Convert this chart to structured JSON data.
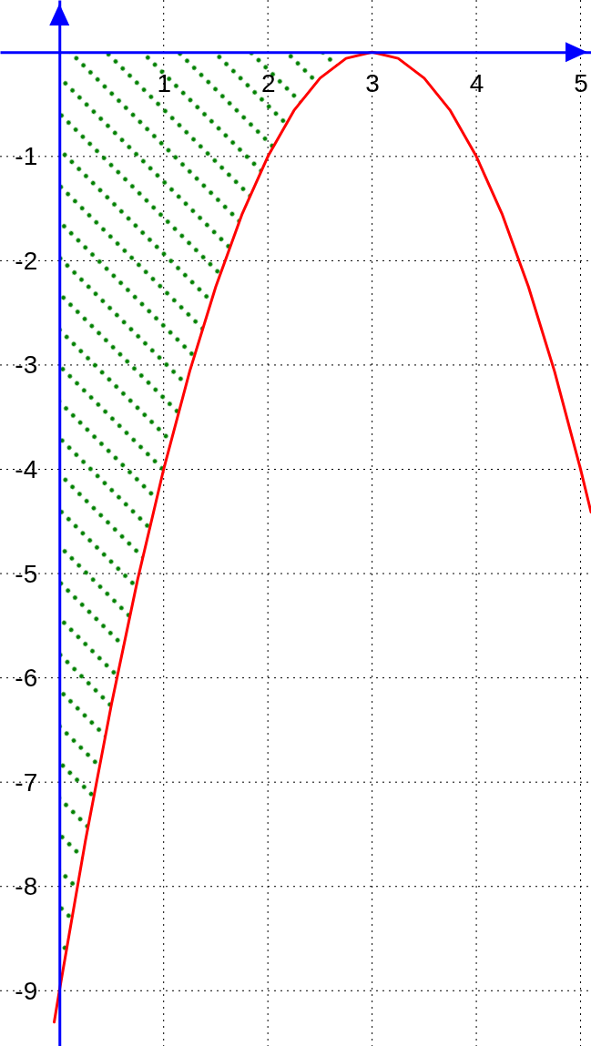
{
  "chart_data": {
    "type": "line",
    "xlim": [
      -0.57,
      5.1
    ],
    "ylim": [
      -9.53,
      0.5
    ],
    "xticks": [
      1,
      2,
      3,
      4,
      5
    ],
    "yticks": [
      -1,
      -2,
      -3,
      -4,
      -5,
      -6,
      -7,
      -8,
      -9
    ],
    "grid": true,
    "series": [
      {
        "color": "#ff0000",
        "x": [
          -0.05,
          0,
          0.25,
          0.5,
          0.75,
          1,
          1.25,
          1.5,
          1.75,
          2,
          2.25,
          2.5,
          2.75,
          3,
          3.25,
          3.5,
          3.75,
          4,
          4.25,
          4.5,
          4.75,
          5,
          5.1
        ],
        "values": [
          -9.3,
          -9,
          -7.56,
          -6.25,
          -5.06,
          -4,
          -3.06,
          -2.25,
          -1.56,
          -1,
          -0.56,
          -0.25,
          -0.06,
          0,
          -0.06,
          -0.25,
          -0.56,
          -1,
          -1.56,
          -2.25,
          -3.06,
          -4,
          -4.41
        ]
      },
      {
        "type": "area",
        "color": "#008000",
        "x": [
          0,
          0.25,
          0.5,
          0.75,
          1,
          1.25,
          1.5,
          1.75,
          2,
          2.25,
          2.5,
          2.75,
          3
        ],
        "values": [
          -9,
          -7.56,
          -6.25,
          -5.06,
          -4,
          -3.06,
          -2.25,
          -1.56,
          -1,
          -0.56,
          -0.25,
          -0.06,
          0
        ]
      }
    ]
  }
}
